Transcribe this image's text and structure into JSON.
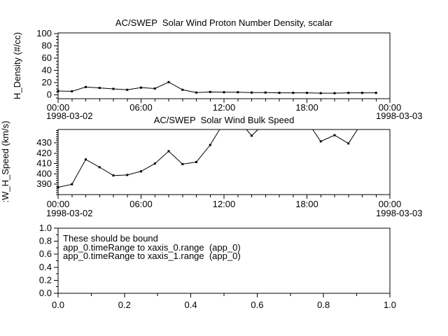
{
  "app": {
    "background": "#ffffff",
    "foreground": "#000000"
  },
  "chart_data": [
    {
      "id": "density",
      "type": "line",
      "title": "AC/SWEP  Solar Wind Proton Number Density, scalar",
      "ylabel": "H_Density (#/cc)",
      "xlabel": "",
      "date_left": "1998-03-02",
      "date_right": "1998-03-03",
      "line_color": "#000000",
      "marker": "square",
      "xlim": [
        0,
        24
      ],
      "ylim": [
        -6,
        101
      ],
      "xticks": [
        0,
        6,
        12,
        18,
        24
      ],
      "xtick_labels": [
        "00:00",
        "06:00",
        "12:00",
        "18:00",
        "00:00"
      ],
      "x_minor_step": 1,
      "yticks": [
        0,
        20,
        40,
        60,
        80,
        100
      ],
      "ytick_labels": [
        "0",
        "20",
        "40",
        "60",
        "80",
        "100"
      ],
      "y_minor_step": 5,
      "x_hours": [
        0,
        1,
        2,
        3,
        4,
        5,
        6,
        7,
        8,
        9,
        10,
        11,
        12,
        13,
        14,
        15,
        16,
        17,
        18,
        19,
        20,
        21,
        22,
        23
      ],
      "values": [
        6.5,
        6,
        13,
        11.5,
        10,
        8.5,
        12,
        10.5,
        21,
        8.5,
        4,
        5,
        4.5,
        4.5,
        4,
        4,
        3.5,
        3.5,
        3.5,
        3,
        3,
        3.5,
        3.5,
        3.5
      ]
    },
    {
      "id": "speed",
      "type": "line",
      "title": "AC/SWEP  Solar Wind Bulk Speed",
      "ylabel": ":W_H_Speed (km/s)",
      "xlabel": "",
      "date_left": "1998-03-02",
      "date_right": "1998-03-03",
      "line_color": "#000000",
      "marker": "square",
      "xlim": [
        0,
        24
      ],
      "ylim": [
        380,
        443
      ],
      "xticks": [
        0,
        6,
        12,
        18,
        24
      ],
      "xtick_labels": [
        "00:00",
        "06:00",
        "12:00",
        "18:00",
        "00:00"
      ],
      "x_minor_step": 1,
      "yticks": [
        390,
        400,
        410,
        420,
        430
      ],
      "ytick_labels": [
        "390",
        "400",
        "410",
        "420",
        "430"
      ],
      "y_minor_step": 2,
      "x_hours": [
        0,
        1,
        2,
        3,
        4,
        5,
        6,
        7,
        8,
        9,
        10,
        11,
        12,
        13,
        14,
        15,
        16,
        17,
        18,
        19,
        20,
        21,
        22,
        23
      ],
      "values": [
        387,
        390,
        414,
        406.5,
        398.5,
        399,
        402.5,
        410,
        422,
        409.5,
        411.5,
        428,
        450,
        453,
        437,
        450,
        455,
        452,
        451,
        431.5,
        437.5,
        429.5,
        450,
        447
      ]
    },
    {
      "id": "bindings",
      "type": "empty",
      "title": "",
      "ylabel": "",
      "xlabel": "",
      "xlim": [
        0,
        1
      ],
      "ylim": [
        0,
        1
      ],
      "xticks": [
        0,
        0.2,
        0.4,
        0.6,
        0.8,
        1
      ],
      "xtick_labels": [
        "0.0",
        "0.2",
        "0.4",
        "0.6",
        "0.8",
        "1.0"
      ],
      "x_minor_step": 0.1,
      "yticks": [
        0,
        0.2,
        0.4,
        0.6,
        0.8,
        1
      ],
      "ytick_labels": [
        "0.0",
        "0.2",
        "0.4",
        "0.6",
        "0.8",
        "1.0"
      ],
      "y_minor_step": 0.1,
      "annotations": [
        "These should be bound",
        "app_0.timeRange to xaxis_0.range  (app_0)",
        "app_0.timeRange to xaxis_1.range  (app_0)"
      ]
    }
  ]
}
